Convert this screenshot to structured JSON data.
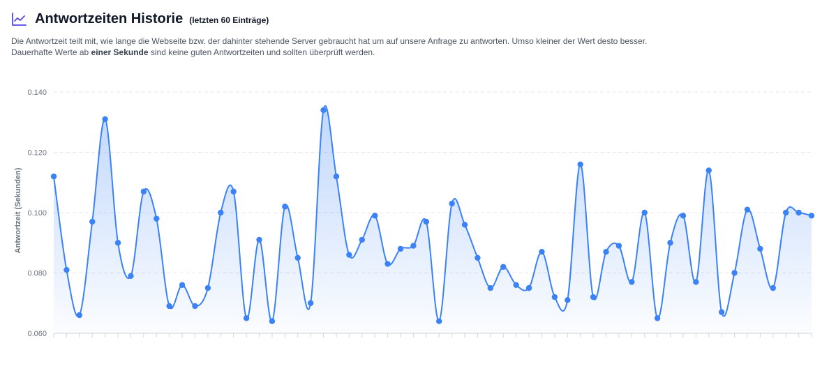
{
  "header": {
    "title": "Antwortzeiten Historie",
    "subtitle": "(letzten 60 Einträge)",
    "icon": "line-chart-icon",
    "accent_color": "#4f46e5"
  },
  "description": {
    "line1": "Die Antwortzeit teilt mit, wie lange die Webseite bzw. der dahinter stehende Server gebraucht hat um auf unsere Anfrage zu antworten. Umso kleiner der Wert desto besser.",
    "line2_pre": "Dauerhafte Werte ab ",
    "line2_bold": "einer Sekunde",
    "line2_post": " sind keine guten Antwortzeiten und sollten überprüft werden."
  },
  "chart_data": {
    "type": "area",
    "ylabel": "Antwortzeit (Sekunden)",
    "xlabel": "",
    "ylim": [
      0.06,
      0.14
    ],
    "yticks": [
      0.06,
      0.08,
      0.1,
      0.12,
      0.14
    ],
    "ytick_labels": [
      "0.060",
      "0.080",
      "0.100",
      "0.120",
      "0.140"
    ],
    "grid": true,
    "line_color": "#3b82f6",
    "fill_color": "#3b82f6",
    "series": [
      {
        "values": [
          0.112,
          0.081,
          0.066,
          0.097,
          0.131,
          0.09,
          0.079,
          0.107,
          0.098,
          0.069,
          0.076,
          0.069,
          0.075,
          0.1,
          0.107,
          0.065,
          0.091,
          0.064,
          0.102,
          0.085,
          0.07,
          0.134,
          0.112,
          0.086,
          0.091,
          0.099,
          0.083,
          0.088,
          0.089,
          0.097,
          0.064,
          0.103,
          0.096,
          0.085,
          0.075,
          0.082,
          0.076,
          0.075,
          0.087,
          0.072,
          0.071,
          0.116,
          0.072,
          0.087,
          0.089,
          0.077,
          0.1,
          0.065,
          0.09,
          0.099,
          0.077,
          0.114,
          0.067,
          0.08,
          0.101,
          0.088,
          0.075,
          0.1,
          0.1,
          0.099
        ]
      }
    ]
  }
}
